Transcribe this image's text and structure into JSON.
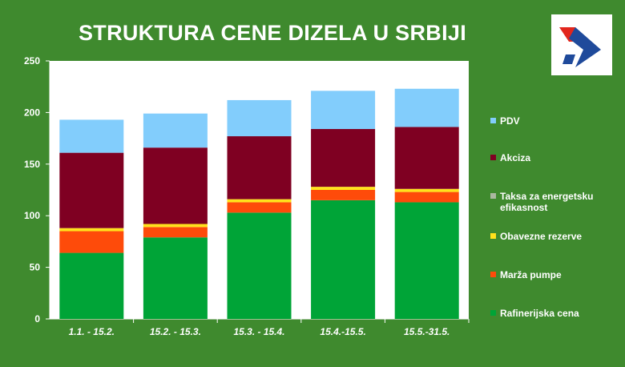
{
  "header": {
    "title": "STRUKTURA CENE DIZELA U SRBIJI"
  },
  "logo": {
    "icon": "nis-logo-icon",
    "colors": [
      "#e2261d",
      "#1f4a9b"
    ]
  },
  "chart_data": {
    "type": "bar",
    "stacked": true,
    "title": "STRUKTURA CENE DIZELA U SRBIJI",
    "xlabel": "",
    "ylabel": "",
    "ylim": [
      0,
      250
    ],
    "yticks": [
      "0",
      "50",
      "100",
      "150",
      "200",
      "250"
    ],
    "grid": false,
    "legend_position": "right",
    "categories": [
      "1.1. - 15.2.",
      "15.2. - 15.3.",
      "15.3. - 15.4.",
      "15.4.-15.5.",
      "15.5.-31.5."
    ],
    "series": [
      {
        "name": "Rafinerijska cena",
        "color": "#00a437",
        "values": [
          64,
          79,
          103,
          115,
          113
        ]
      },
      {
        "name": "Marža pumpe",
        "color": "#fe4b0a",
        "values": [
          21,
          10,
          10,
          10,
          10
        ]
      },
      {
        "name": "Obavezne rezerve",
        "color": "#ffe21c",
        "values": [
          3,
          3,
          3,
          3,
          3
        ]
      },
      {
        "name": "Taksa za energetsku efikasnost",
        "color": "#aab8a0",
        "values": [
          0,
          0,
          0,
          0,
          0
        ]
      },
      {
        "name": "Akciza",
        "color": "#7f0022",
        "values": [
          73,
          74,
          61,
          56,
          60
        ]
      },
      {
        "name": "PDV",
        "color": "#82cdfc",
        "values": [
          32,
          33,
          35,
          37,
          37
        ]
      }
    ],
    "legend_order": [
      "PDV",
      "Akciza",
      "Taksa za energetsku efikasnost",
      "Obavezne rezerve",
      "Marža pumpe",
      "Rafinerijska cena"
    ]
  }
}
